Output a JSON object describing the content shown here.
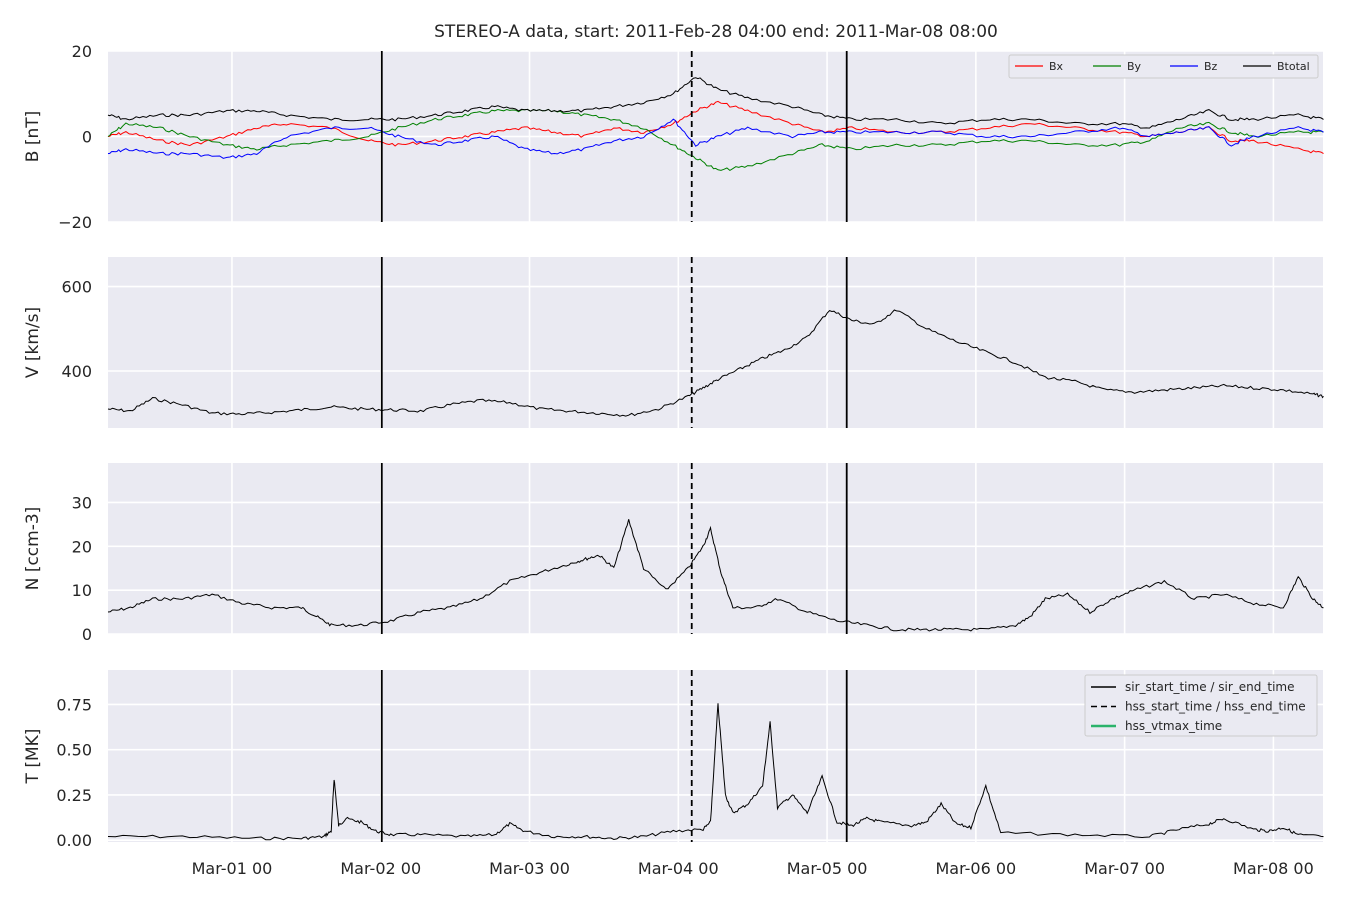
{
  "chart_data": {
    "type": "line",
    "title": "STEREO-A data, start: 2011-Feb-28 04:00  end: 2011-Mar-08 08:00",
    "x_range": [
      "2011-02-28 04:00",
      "2011-03-08 08:00"
    ],
    "x_ticks": [
      "Mar-01 00",
      "Mar-02 00",
      "Mar-03 00",
      "Mar-04 00",
      "Mar-05 00",
      "Mar-06 00",
      "Mar-07 00",
      "Mar-08 00"
    ],
    "x_tick_dates": [
      "2011-03-01 00:00",
      "2011-03-02 00:00",
      "2011-03-03 00:00",
      "2011-03-04 00:00",
      "2011-03-05 00:00",
      "2011-03-06 00:00",
      "2011-03-07 00:00",
      "2011-03-08 00:00"
    ],
    "grid": true,
    "events": {
      "sir_start_time": "2011-03-02 00:10",
      "hss_start_time": "2011-03-04 02:10",
      "sir_end_time": "2011-03-05 03:10"
    },
    "panels": [
      {
        "id": "B",
        "ylabel": "B [nT]",
        "ylim": [
          -20,
          20
        ],
        "yticks": [
          20,
          0,
          -20
        ],
        "ytick_labels": [
          "20",
          "0",
          "−20"
        ],
        "legend": {
          "position": "top-right",
          "ncol": 4,
          "entries": [
            "Bx",
            "By",
            "Bz",
            "Btotal"
          ]
        },
        "series": [
          {
            "name": "Bx",
            "color": "#ff0000",
            "x": [
              0,
              0.12,
              0.35,
              0.55,
              0.8,
              1.0,
              1.2,
              1.5,
              1.75,
              1.95,
              2.2,
              2.4,
              2.6,
              2.8,
              3.0,
              3.2,
              3.4,
              3.6,
              3.8,
              3.95,
              4.1,
              4.3,
              4.6,
              4.8,
              5.0,
              5.3,
              5.6,
              5.9,
              6.2,
              6.5,
              6.8,
              7.0,
              7.2,
              7.4,
              7.55,
              7.7,
              8.0,
              8.17
            ],
            "y": [
              0,
              1,
              -1,
              -2,
              0,
              2,
              3,
              2,
              -1,
              -2,
              -1,
              0,
              1,
              2,
              1,
              0,
              2,
              1,
              3,
              6,
              8,
              6,
              3,
              1,
              2,
              1,
              1,
              2,
              3,
              2,
              1,
              0,
              1,
              2,
              -1,
              -1,
              -3,
              -4
            ]
          },
          {
            "name": "By",
            "color": "#008000",
            "x": [
              0,
              0.12,
              0.35,
              0.55,
              0.8,
              1.0,
              1.2,
              1.5,
              1.75,
              1.95,
              2.2,
              2.4,
              2.6,
              2.8,
              3.0,
              3.2,
              3.4,
              3.6,
              3.8,
              3.95,
              4.1,
              4.3,
              4.6,
              4.8,
              5.0,
              5.3,
              5.6,
              5.9,
              6.2,
              6.5,
              6.8,
              7.0,
              7.2,
              7.4,
              7.55,
              7.7,
              8.0,
              8.17
            ],
            "y": [
              0,
              3,
              2,
              0,
              -2,
              -3,
              -2,
              -1,
              0,
              2,
              4,
              5,
              6,
              6,
              6,
              5,
              4,
              2,
              -2,
              -5,
              -8,
              -7,
              -4,
              -2,
              -3,
              -2,
              -2,
              -1,
              -1,
              -2,
              -2,
              -1,
              2,
              3,
              1,
              0,
              1,
              1
            ]
          },
          {
            "name": "Bz",
            "color": "#0000ff",
            "x": [
              0,
              0.12,
              0.35,
              0.55,
              0.8,
              1.0,
              1.2,
              1.5,
              1.75,
              1.95,
              2.2,
              2.4,
              2.6,
              2.8,
              3.0,
              3.2,
              3.4,
              3.6,
              3.8,
              3.95,
              4.1,
              4.3,
              4.6,
              4.8,
              5.0,
              5.3,
              5.6,
              5.9,
              6.2,
              6.5,
              6.8,
              7.0,
              7.2,
              7.4,
              7.55,
              7.7,
              8.0,
              8.17
            ],
            "y": [
              -4,
              -3,
              -4,
              -4,
              -5,
              -4,
              0,
              2,
              2,
              0,
              -2,
              -1,
              0,
              -3,
              -4,
              -3,
              -1,
              0,
              4,
              -2,
              0,
              2,
              0,
              1,
              1,
              1,
              1,
              0,
              0,
              1,
              2,
              0,
              1,
              2,
              -2,
              0,
              2,
              1
            ]
          },
          {
            "name": "Btotal",
            "color": "#000000",
            "x": [
              0,
              0.12,
              0.35,
              0.55,
              0.8,
              1.0,
              1.2,
              1.5,
              1.75,
              1.95,
              2.2,
              2.4,
              2.6,
              2.8,
              3.0,
              3.2,
              3.4,
              3.6,
              3.8,
              3.95,
              4.1,
              4.3,
              4.6,
              4.8,
              5.0,
              5.3,
              5.6,
              5.9,
              6.2,
              6.5,
              6.8,
              7.0,
              7.2,
              7.4,
              7.55,
              7.7,
              8.0,
              8.17
            ],
            "y": [
              5,
              4,
              5,
              5,
              6,
              6,
              5,
              4,
              4,
              4,
              5,
              6,
              7,
              6,
              6,
              6,
              7,
              8,
              10,
              14,
              11,
              9,
              7,
              5,
              4,
              4,
              3,
              4,
              4,
              3,
              3,
              2,
              4,
              6,
              4,
              4,
              5,
              4
            ]
          }
        ]
      },
      {
        "id": "V",
        "ylabel": "V [km/s]",
        "ylim": [
          265,
          670
        ],
        "yticks": [
          600,
          400
        ],
        "ytick_labels": [
          "600",
          "400"
        ],
        "series": [
          {
            "name": "V",
            "color": "#000000",
            "x": [
              0,
              0.15,
              0.3,
              0.5,
              0.7,
              0.9,
              1.1,
              1.3,
              1.5,
              1.7,
              1.9,
              2.1,
              2.3,
              2.5,
              2.7,
              2.9,
              3.1,
              3.3,
              3.5,
              3.7,
              3.9,
              4.0,
              4.1,
              4.25,
              4.4,
              4.55,
              4.7,
              4.85,
              5.0,
              5.15,
              5.3,
              5.5,
              5.7,
              5.9,
              6.1,
              6.3,
              6.5,
              6.7,
              6.9,
              7.1,
              7.3,
              7.5,
              7.7,
              7.9,
              8.1,
              8.17
            ],
            "y": [
              310,
              305,
              335,
              320,
              300,
              298,
              302,
              308,
              315,
              310,
              308,
              305,
              320,
              330,
              325,
              310,
              305,
              300,
              295,
              310,
              340,
              360,
              380,
              405,
              430,
              450,
              480,
              545,
              520,
              510,
              545,
              500,
              470,
              445,
              420,
              385,
              375,
              355,
              350,
              355,
              360,
              365,
              360,
              355,
              345,
              340
            ]
          }
        ]
      },
      {
        "id": "N",
        "ylabel": "N [ccm-3]",
        "ylim": [
          0,
          39
        ],
        "yticks": [
          30,
          20,
          10,
          0
        ],
        "ytick_labels": [
          "30",
          "20",
          "10",
          "0"
        ],
        "series": [
          {
            "name": "N",
            "color": "#000000",
            "x": [
              0,
              0.15,
              0.3,
              0.5,
              0.7,
              0.9,
              1.1,
              1.3,
              1.4,
              1.5,
              1.7,
              1.9,
              2.1,
              2.3,
              2.5,
              2.7,
              2.9,
              3.1,
              3.2,
              3.3,
              3.4,
              3.5,
              3.6,
              3.75,
              3.9,
              4.0,
              4.05,
              4.12,
              4.2,
              4.35,
              4.5,
              4.7,
              4.9,
              5.1,
              5.3,
              5.5,
              5.7,
              5.9,
              6.1,
              6.2,
              6.3,
              6.45,
              6.6,
              6.75,
              6.9,
              7.1,
              7.3,
              7.5,
              7.7,
              7.9,
              8.0,
              8.1,
              8.17
            ],
            "y": [
              5,
              6,
              8,
              8,
              9,
              7,
              6,
              6,
              4,
              2,
              2,
              3,
              5,
              6,
              8,
              12,
              14,
              16,
              17,
              18,
              15,
              26,
              15,
              10,
              15,
              20,
              24,
              14,
              6,
              6,
              8,
              5,
              3,
              2,
              1,
              1,
              1,
              1,
              2,
              4,
              8,
              9,
              5,
              8,
              10,
              12,
              8,
              9,
              7,
              6,
              13,
              8,
              6
            ]
          }
        ]
      },
      {
        "id": "T",
        "ylabel": "T [MK]",
        "ylim": [
          -0.01,
          0.94
        ],
        "yticks": [
          0.75,
          0.5,
          0.25,
          0.0
        ],
        "ytick_labels": [
          "0.75",
          "0.50",
          "0.25",
          "0.00"
        ],
        "legend": {
          "position": "top-right",
          "entries": [
            "sir_start_time / sir_end_time",
            "hss_start_time / hss_end_time",
            "hss_vtmax_time"
          ],
          "colors": [
            "#000000",
            "#000000",
            "#2bb36b"
          ]
        },
        "series": [
          {
            "name": "T",
            "color": "#000000",
            "x": [
              0,
              0.5,
              1.0,
              1.3,
              1.45,
              1.5,
              1.52,
              1.55,
              1.6,
              1.7,
              1.8,
              1.9,
              2.1,
              2.4,
              2.6,
              2.7,
              2.8,
              3.0,
              3.2,
              3.4,
              3.6,
              3.8,
              4.0,
              4.05,
              4.1,
              4.15,
              4.2,
              4.3,
              4.4,
              4.45,
              4.5,
              4.6,
              4.7,
              4.8,
              4.9,
              5.0,
              5.1,
              5.2,
              5.4,
              5.5,
              5.6,
              5.7,
              5.8,
              5.9,
              6.0,
              6.5,
              7.0,
              7.2,
              7.4,
              7.5,
              7.7,
              7.8,
              7.9,
              8.0,
              8.17
            ],
            "y": [
              0.02,
              0.02,
              0.01,
              0.01,
              0.02,
              0.05,
              0.34,
              0.08,
              0.12,
              0.1,
              0.05,
              0.03,
              0.03,
              0.02,
              0.03,
              0.09,
              0.05,
              0.02,
              0.02,
              0.01,
              0.02,
              0.05,
              0.06,
              0.1,
              0.75,
              0.25,
              0.15,
              0.2,
              0.3,
              0.65,
              0.18,
              0.25,
              0.15,
              0.35,
              0.1,
              0.08,
              0.12,
              0.1,
              0.08,
              0.1,
              0.2,
              0.09,
              0.07,
              0.3,
              0.04,
              0.03,
              0.02,
              0.06,
              0.09,
              0.12,
              0.06,
              0.05,
              0.07,
              0.03,
              0.02
            ]
          }
        ]
      }
    ]
  }
}
